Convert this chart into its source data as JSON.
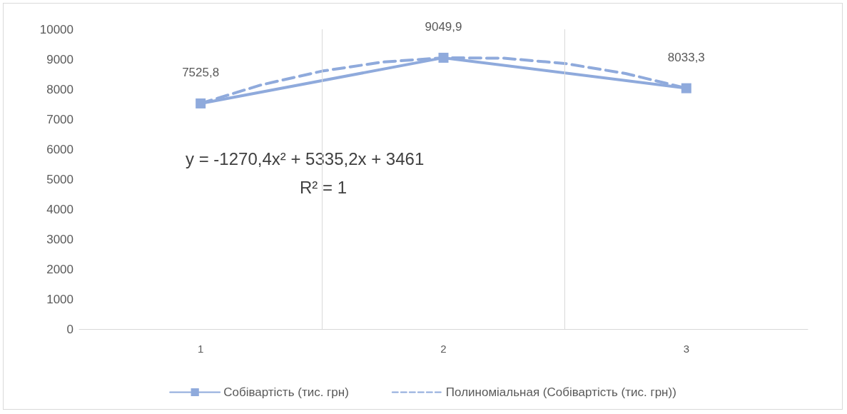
{
  "chart_data": {
    "type": "line",
    "x": [
      1,
      2,
      3
    ],
    "series": [
      {
        "name": "Собівартість (тис. грн)",
        "color": "#8faadc",
        "values": [
          7525.8,
          9049.9,
          8033.3
        ],
        "value_labels": [
          "7525,8",
          "9049,9",
          "8033,3"
        ],
        "marker": "square",
        "line_style": "solid"
      },
      {
        "name": "Полиноміальная (Собівартість (тис. грн))",
        "color": "#8faadc",
        "x": [
          1,
          1.25,
          1.5,
          1.75,
          2,
          2.25,
          2.5,
          2.75,
          3
        ],
        "values": [
          7526,
          8145,
          8605,
          8907,
          9050,
          9034,
          8859,
          8525,
          8033
        ],
        "marker": "none",
        "line_style": "dashed"
      }
    ],
    "xlim": [
      0.5,
      3.5
    ],
    "xticks": [
      1,
      {
        "value": 1.5,
        "label": null
      },
      2,
      {
        "value": 2.5,
        "label": null
      },
      3
    ],
    "ylim": [
      0,
      10000
    ],
    "yticks": [
      0,
      1000,
      2000,
      3000,
      4000,
      5000,
      6000,
      7000,
      8000,
      9000,
      10000
    ],
    "grid": "x",
    "legend": "bottom",
    "annotations": [
      "y = -1270,4x² + 5335,2x + 3461",
      "R² = 1"
    ]
  }
}
